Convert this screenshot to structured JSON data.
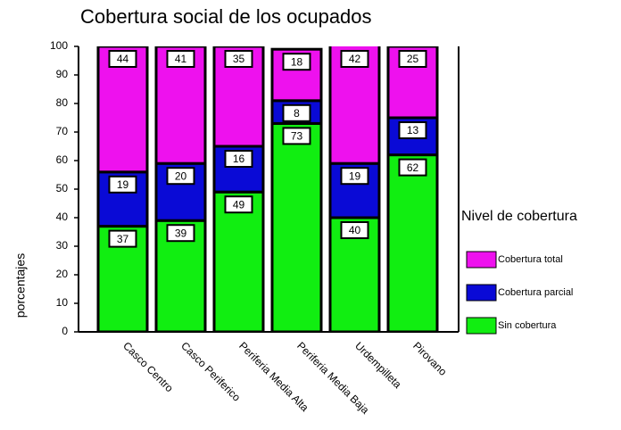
{
  "chart_data": {
    "type": "stacked_bar",
    "title": "Cobertura social de los ocupados",
    "y_label": "porcentajes",
    "legend_title": "Nivel de cobertura",
    "categories": [
      "Casco Centro",
      "Casco Periferico",
      "Periferia Media Alta",
      "Periferia Media Baja",
      "Urdempilleta",
      "Pirovano"
    ],
    "series": [
      {
        "name": "Sin cobertura",
        "color": "#11ee11",
        "values": [
          37,
          39,
          49,
          73,
          40,
          62
        ]
      },
      {
        "name": "Cobertura parcial",
        "color": "#0a0ad6",
        "values": [
          19,
          20,
          16,
          8,
          19,
          13
        ]
      },
      {
        "name": "Cobertura total",
        "color": "#ee11ee",
        "values": [
          44,
          41,
          35,
          18,
          42,
          25
        ]
      }
    ],
    "ylim": [
      0,
      100
    ],
    "yticks": [
      0,
      10,
      20,
      30,
      40,
      50,
      60,
      70,
      80,
      90,
      100
    ],
    "legend": "right"
  }
}
